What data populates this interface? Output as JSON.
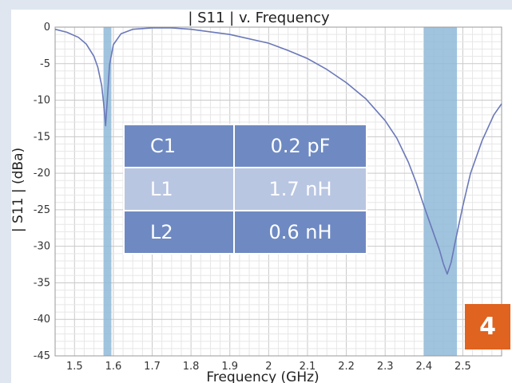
{
  "chart_data": {
    "type": "line",
    "title": "| S11 | v. Frequency",
    "xlabel": "Frequency (GHz)",
    "ylabel": "| S11 | (dBa)",
    "xlim": [
      1.45,
      2.6
    ],
    "ylim": [
      -45,
      0
    ],
    "x_ticks": [
      "1.5",
      "1.6",
      "1.7",
      "1.8",
      "1.9",
      "2",
      "2.1",
      "2.2",
      "2.3",
      "2.4",
      "2.5"
    ],
    "y_ticks": [
      "0",
      "-5",
      "-10",
      "-15",
      "-20",
      "-25",
      "-30",
      "-35",
      "-40",
      "-45"
    ],
    "grid": true,
    "line_color": "#6a78b8",
    "band_color": "#8fb9d8",
    "bands": [
      {
        "from": 1.575,
        "to": 1.595
      },
      {
        "from": 2.4,
        "to": 2.485
      }
    ],
    "series": [
      {
        "x": [
          1.45,
          1.48,
          1.51,
          1.53,
          1.55,
          1.56,
          1.57,
          1.575,
          1.58,
          1.585,
          1.59,
          1.6,
          1.62,
          1.65,
          1.7,
          1.75,
          1.8,
          1.9,
          2.0,
          2.05,
          2.1,
          2.15,
          2.2,
          2.25,
          2.3,
          2.33,
          2.36,
          2.38,
          2.4,
          2.42,
          2.44,
          2.45,
          2.46,
          2.47,
          2.48,
          2.5,
          2.52,
          2.55,
          2.58,
          2.6
        ],
        "y": [
          -0.3,
          -0.7,
          -1.4,
          -2.3,
          -4.0,
          -5.5,
          -8.0,
          -10.5,
          -13.5,
          -9.5,
          -5.2,
          -2.4,
          -0.9,
          -0.3,
          -0.1,
          -0.1,
          -0.3,
          -1.0,
          -2.2,
          -3.2,
          -4.3,
          -5.8,
          -7.6,
          -9.8,
          -12.8,
          -15.2,
          -18.5,
          -21.3,
          -24.5,
          -27.5,
          -30.5,
          -32.4,
          -33.8,
          -32.2,
          -29.5,
          -24.5,
          -20.0,
          -15.5,
          -12.0,
          -10.5
        ]
      }
    ]
  },
  "table": {
    "rows": [
      {
        "name": "C1",
        "value": "0.2 pF"
      },
      {
        "name": "L1",
        "value": "1.7 nH"
      },
      {
        "name": "L2",
        "value": "0.6 nH"
      }
    ]
  },
  "badge": "4"
}
